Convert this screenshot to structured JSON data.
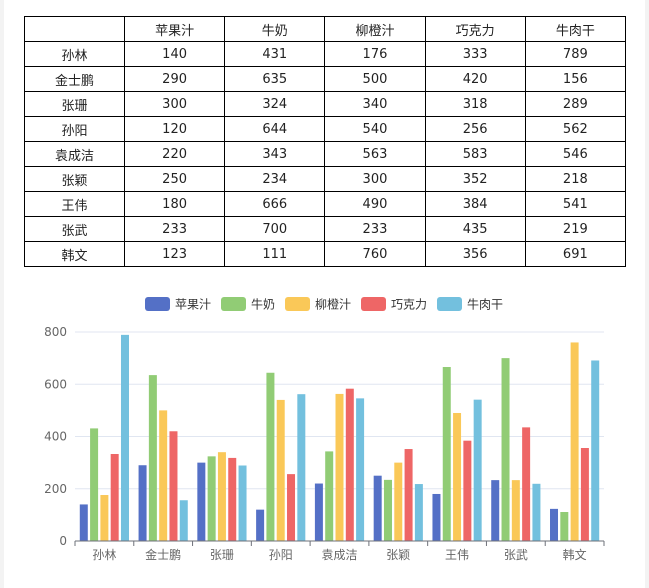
{
  "table": {
    "corner": "",
    "columns": [
      "苹果汁",
      "牛奶",
      "柳橙汁",
      "巧克力",
      "牛肉干"
    ],
    "rows": [
      {
        "name": "孙林",
        "values": [
          "140",
          "431",
          "176",
          "333",
          "789"
        ]
      },
      {
        "name": "金士鹏",
        "values": [
          "290",
          "635",
          "500",
          "420",
          "156"
        ]
      },
      {
        "name": "张珊",
        "values": [
          "300",
          "324",
          "340",
          "318",
          "289"
        ]
      },
      {
        "name": "孙阳",
        "values": [
          "120",
          "644",
          "540",
          "256",
          "562"
        ]
      },
      {
        "name": "袁成洁",
        "values": [
          "220",
          "343",
          "563",
          "583",
          "546"
        ]
      },
      {
        "name": "张颖",
        "values": [
          "250",
          "234",
          "300",
          "352",
          "218"
        ]
      },
      {
        "name": "王伟",
        "values": [
          "180",
          "666",
          "490",
          "384",
          "541"
        ]
      },
      {
        "name": "张武",
        "values": [
          "233",
          "700",
          "233",
          "435",
          "219"
        ]
      },
      {
        "name": "韩文",
        "values": [
          "123",
          "111",
          "760",
          "356",
          "691"
        ]
      }
    ]
  },
  "chart_data": {
    "type": "bar",
    "title": "",
    "xlabel": "",
    "ylabel": "",
    "categories": [
      "孙林",
      "金士鹏",
      "张珊",
      "孙阳",
      "袁成洁",
      "张颖",
      "王伟",
      "张武",
      "韩文"
    ],
    "series": [
      {
        "name": "苹果汁",
        "color": "#5470c6",
        "values": [
          140,
          290,
          300,
          120,
          220,
          250,
          180,
          233,
          123
        ]
      },
      {
        "name": "牛奶",
        "color": "#91cc75",
        "values": [
          431,
          635,
          324,
          644,
          343,
          234,
          666,
          700,
          111
        ]
      },
      {
        "name": "柳橙汁",
        "color": "#fac858",
        "values": [
          176,
          500,
          340,
          540,
          563,
          300,
          490,
          233,
          760
        ]
      },
      {
        "name": "巧克力",
        "color": "#ee6666",
        "values": [
          333,
          420,
          318,
          256,
          583,
          352,
          384,
          435,
          356
        ]
      },
      {
        "name": "牛肉干",
        "color": "#73c0de",
        "values": [
          789,
          156,
          289,
          562,
          546,
          218,
          541,
          219,
          691
        ]
      }
    ],
    "ylim": [
      0,
      800
    ],
    "yticks": [
      0,
      200,
      400,
      600,
      800
    ],
    "grid": true,
    "legend_position": "top-center"
  }
}
